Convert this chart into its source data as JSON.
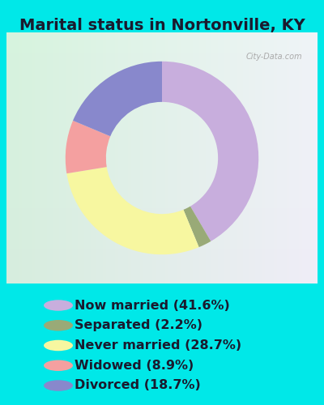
{
  "title": "Marital status in Nortonville, KY",
  "slices": [
    41.6,
    2.2,
    28.7,
    8.9,
    18.7
  ],
  "labels": [
    "Now married (41.6%)",
    "Separated (2.2%)",
    "Never married (28.7%)",
    "Widowed (8.9%)",
    "Divorced (18.7%)"
  ],
  "colors": [
    "#c8aedd",
    "#99aa77",
    "#f7f7a0",
    "#f4a0a0",
    "#8888cc"
  ],
  "bg_color": "#00e8e8",
  "chart_bg_color": "#d6eedd",
  "title_fontsize": 14,
  "legend_fontsize": 11.5,
  "donut_width": 0.42,
  "startangle": 90,
  "watermark": "City-Data.com"
}
